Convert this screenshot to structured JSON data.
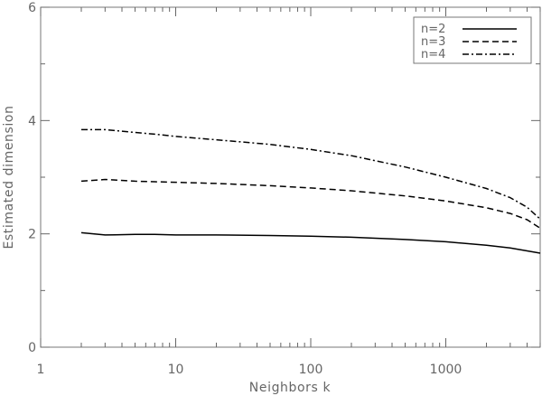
{
  "chart_data": {
    "type": "line",
    "xlabel": "Neighbors k",
    "ylabel": "Estimated dimension",
    "xscale": "log",
    "xlim": [
      1,
      5000
    ],
    "ylim": [
      0,
      6
    ],
    "x_ticks": [
      {
        "value": 1,
        "label": "1"
      },
      {
        "value": 10,
        "label": "10"
      },
      {
        "value": 100,
        "label": "100"
      },
      {
        "value": 1000,
        "label": "1000"
      }
    ],
    "y_ticks": [
      {
        "value": 0,
        "label": "0"
      },
      {
        "value": 2,
        "label": "2"
      },
      {
        "value": 4,
        "label": "4"
      },
      {
        "value": 6,
        "label": "6"
      }
    ],
    "grid": false,
    "legend_position": "top-right",
    "series": [
      {
        "name": "n=2",
        "line_style": "solid",
        "x": [
          2,
          3,
          5,
          7,
          10,
          20,
          50,
          100,
          200,
          500,
          1000,
          2000,
          3000,
          5000
        ],
        "y": [
          2.02,
          1.98,
          1.99,
          1.99,
          1.98,
          1.98,
          1.97,
          1.96,
          1.94,
          1.9,
          1.86,
          1.8,
          1.75,
          1.66
        ]
      },
      {
        "name": "n=3",
        "line_style": "dashed",
        "x": [
          2,
          3,
          5,
          7,
          10,
          20,
          50,
          100,
          200,
          500,
          1000,
          2000,
          3000,
          4000,
          5000
        ],
        "y": [
          2.93,
          2.96,
          2.93,
          2.92,
          2.91,
          2.89,
          2.85,
          2.81,
          2.76,
          2.67,
          2.58,
          2.46,
          2.36,
          2.25,
          2.1
        ]
      },
      {
        "name": "n=4",
        "line_style": "dash-dot",
        "x": [
          2,
          3,
          5,
          7,
          10,
          20,
          50,
          100,
          200,
          500,
          1000,
          2000,
          3000,
          4000,
          5000
        ],
        "y": [
          3.84,
          3.84,
          3.79,
          3.76,
          3.72,
          3.66,
          3.58,
          3.49,
          3.38,
          3.18,
          3.0,
          2.8,
          2.64,
          2.47,
          2.26
        ]
      }
    ],
    "colors": {
      "line": "#000000",
      "axis": "#666666",
      "text": "#666666"
    }
  }
}
